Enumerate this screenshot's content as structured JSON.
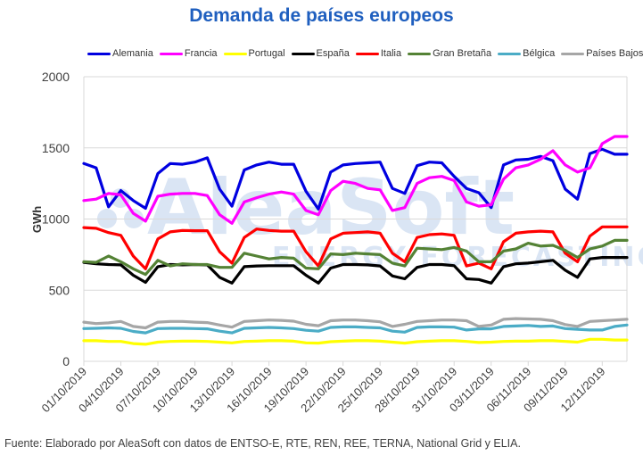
{
  "chart_data": {
    "type": "line",
    "title": "Demanda de países europeos",
    "xlabel": "",
    "ylabel": "GWh",
    "ylim": [
      0,
      2000
    ],
    "yticks": [
      "0",
      "500",
      "1000",
      "1500",
      "2000"
    ],
    "ytick_values": [
      0,
      500,
      1000,
      1500,
      2000
    ],
    "grid": true,
    "legend_position": "top",
    "xtick_labels": [
      "01/10/2019",
      "04/10/2019",
      "07/10/2019",
      "10/10/2019",
      "13/10/2019",
      "16/10/2019",
      "19/10/2019",
      "22/10/2019",
      "25/10/2019",
      "28/10/2019",
      "31/10/2019",
      "03/11/2019",
      "06/11/2019",
      "09/11/2019",
      "12/11/2019"
    ],
    "x_start": "01/10/2019",
    "x_end": "14/11/2019",
    "n_points": 45,
    "series": [
      {
        "name": "Alemania",
        "color": "#0000e0",
        "values": [
          1390,
          1360,
          1085,
          1200,
          1130,
          1075,
          1320,
          1390,
          1385,
          1400,
          1430,
          1210,
          1090,
          1345,
          1380,
          1400,
          1385,
          1385,
          1195,
          1070,
          1330,
          1380,
          1390,
          1395,
          1400,
          1215,
          1180,
          1375,
          1400,
          1395,
          1300,
          1215,
          1185,
          1080,
          1380,
          1415,
          1420,
          1440,
          1410,
          1210,
          1140,
          1460,
          1490,
          1455,
          1455
        ]
      },
      {
        "name": "Francia",
        "color": "#ff00ff",
        "values": [
          1130,
          1140,
          1180,
          1170,
          1040,
          985,
          1160,
          1175,
          1180,
          1180,
          1165,
          1030,
          970,
          1120,
          1150,
          1175,
          1190,
          1175,
          1060,
          1030,
          1200,
          1265,
          1250,
          1215,
          1205,
          1060,
          1080,
          1250,
          1290,
          1300,
          1270,
          1120,
          1090,
          1100,
          1280,
          1360,
          1380,
          1420,
          1480,
          1380,
          1330,
          1360,
          1530,
          1580,
          1580
        ]
      },
      {
        "name": "Portugal",
        "color": "#ffff00",
        "values": [
          145,
          145,
          140,
          140,
          125,
          120,
          135,
          140,
          142,
          142,
          140,
          135,
          130,
          140,
          142,
          145,
          145,
          142,
          130,
          128,
          138,
          142,
          145,
          145,
          142,
          135,
          128,
          138,
          142,
          145,
          145,
          140,
          132,
          135,
          140,
          142,
          142,
          145,
          145,
          140,
          135,
          155,
          155,
          150,
          150
        ]
      },
      {
        "name": "España",
        "color": "#000000",
        "values": [
          695,
          685,
          680,
          678,
          605,
          555,
          665,
          680,
          678,
          680,
          678,
          590,
          550,
          665,
          670,
          672,
          672,
          672,
          605,
          550,
          655,
          680,
          680,
          678,
          670,
          600,
          580,
          660,
          680,
          680,
          672,
          580,
          575,
          550,
          665,
          685,
          690,
          700,
          710,
          640,
          590,
          720,
          730,
          730,
          730
        ]
      },
      {
        "name": "Italia",
        "color": "#ff0000",
        "values": [
          940,
          935,
          905,
          885,
          740,
          650,
          860,
          910,
          920,
          918,
          918,
          770,
          690,
          870,
          930,
          920,
          915,
          915,
          770,
          670,
          860,
          900,
          905,
          910,
          900,
          760,
          700,
          870,
          890,
          895,
          885,
          670,
          690,
          650,
          840,
          900,
          910,
          915,
          910,
          760,
          700,
          880,
          945,
          945,
          945
        ]
      },
      {
        "name": "Gran Bretaña",
        "color": "#548235",
        "values": [
          700,
          695,
          740,
          700,
          650,
          610,
          710,
          670,
          685,
          680,
          680,
          660,
          660,
          760,
          740,
          720,
          730,
          725,
          655,
          650,
          755,
          750,
          760,
          755,
          750,
          690,
          670,
          795,
          790,
          785,
          800,
          775,
          700,
          700,
          775,
          790,
          830,
          810,
          815,
          780,
          730,
          790,
          810,
          850,
          850
        ]
      },
      {
        "name": "Bélgica",
        "color": "#4bacc6",
        "values": [
          230,
          232,
          235,
          232,
          210,
          200,
          230,
          232,
          232,
          230,
          228,
          212,
          200,
          232,
          235,
          238,
          235,
          230,
          218,
          212,
          238,
          242,
          242,
          238,
          235,
          212,
          205,
          238,
          242,
          242,
          240,
          220,
          228,
          228,
          245,
          248,
          252,
          245,
          248,
          230,
          225,
          220,
          220,
          245,
          255
        ]
      },
      {
        "name": "Países Bajos",
        "color": "#a6a6a6",
        "values": [
          275,
          265,
          270,
          280,
          245,
          235,
          275,
          280,
          280,
          275,
          272,
          255,
          240,
          280,
          285,
          290,
          288,
          282,
          260,
          250,
          285,
          290,
          290,
          285,
          278,
          245,
          260,
          280,
          285,
          290,
          290,
          285,
          245,
          255,
          295,
          300,
          298,
          295,
          285,
          258,
          245,
          280,
          285,
          290,
          295
        ]
      }
    ]
  },
  "watermark": {
    "brand": "AleaSoft",
    "tagline": "ENERGY FORECASTING"
  },
  "source_note": "Fuente: Elaborado por AleaSoft con datos de ENTSO-E, RTE, REN, REE, TERNA, National Grid y ELIA."
}
